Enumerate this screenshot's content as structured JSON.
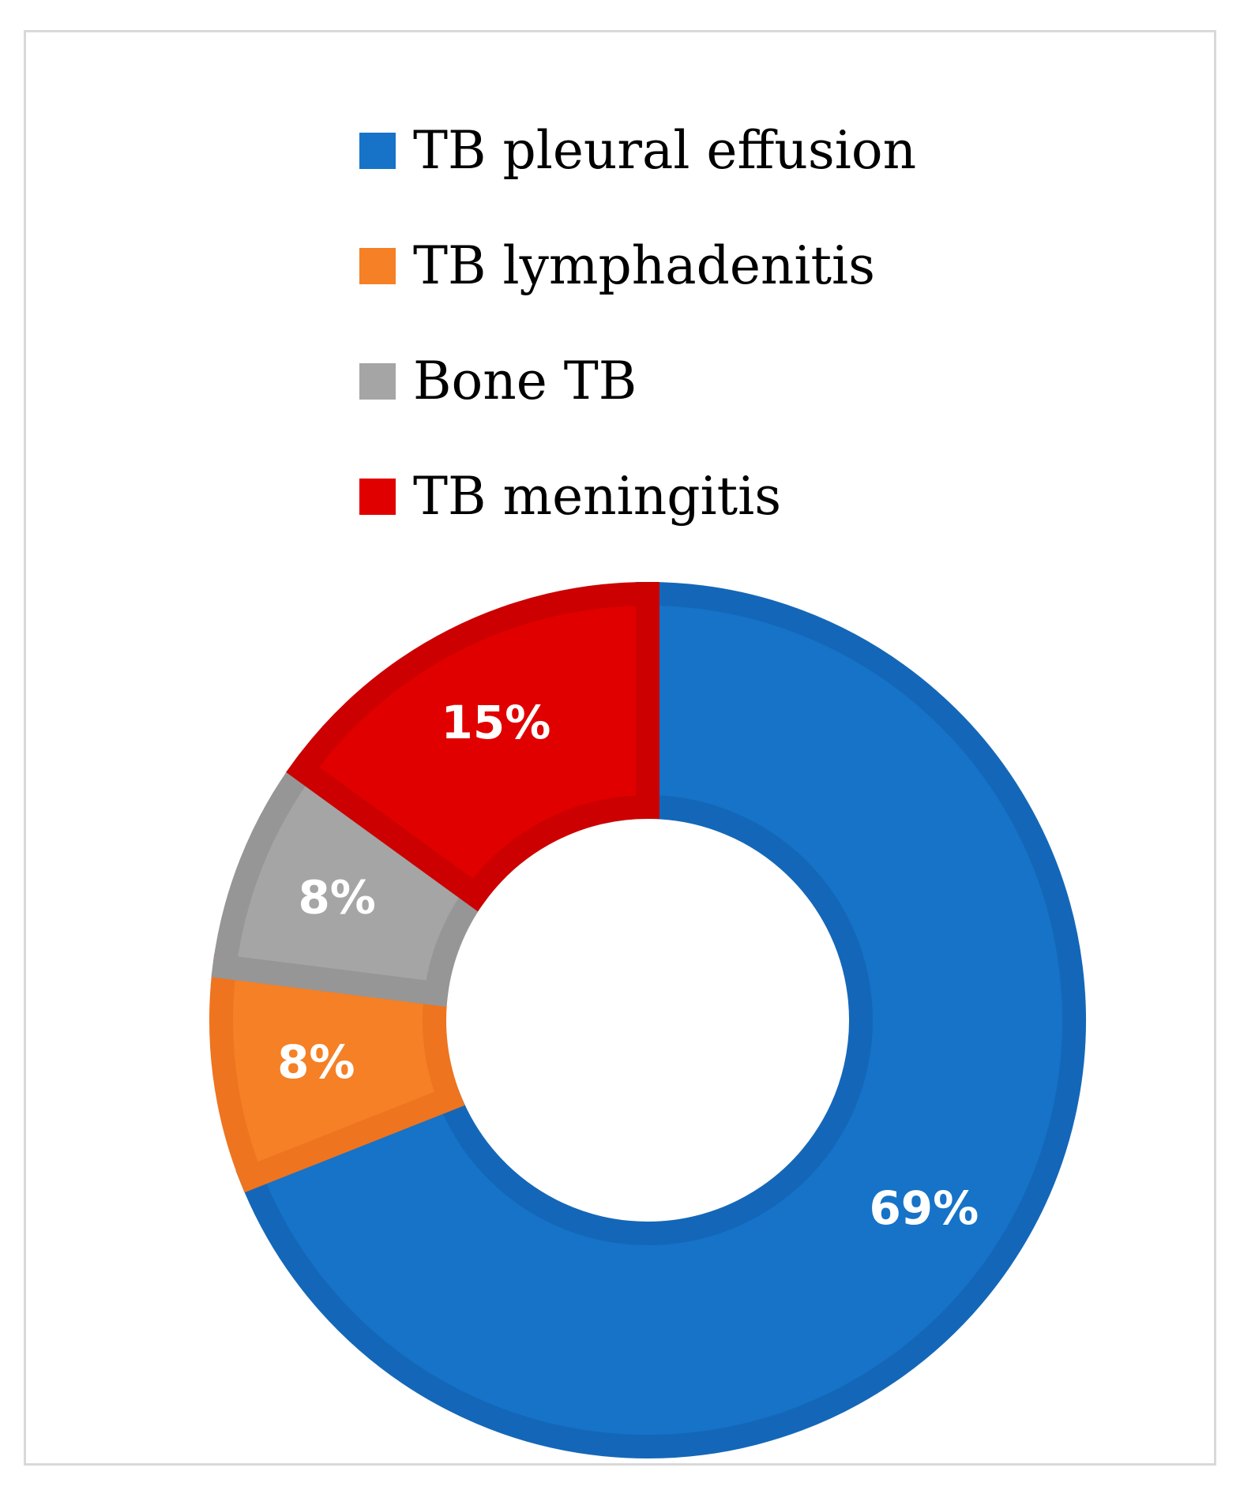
{
  "chart_data": {
    "type": "pie",
    "donut": true,
    "title": "",
    "legend_placement": "top",
    "categories": [
      "TB pleural effusion",
      "TB lymphadenitis",
      "Bone TB",
      "TB meningitis"
    ],
    "values": [
      69,
      8,
      8,
      15
    ],
    "labels": [
      "69%",
      "8%",
      "8%",
      "15%"
    ],
    "colors": [
      "#1673c7",
      "#f58025",
      "#a5a5a5",
      "#e00000"
    ],
    "border_colors": [
      "#1467b8",
      "#ee7420",
      "#969696",
      "#cc0000"
    ],
    "label_colors": [
      "#ffffff",
      "#ffffff",
      "#ffffff",
      "#ffffff"
    ]
  }
}
